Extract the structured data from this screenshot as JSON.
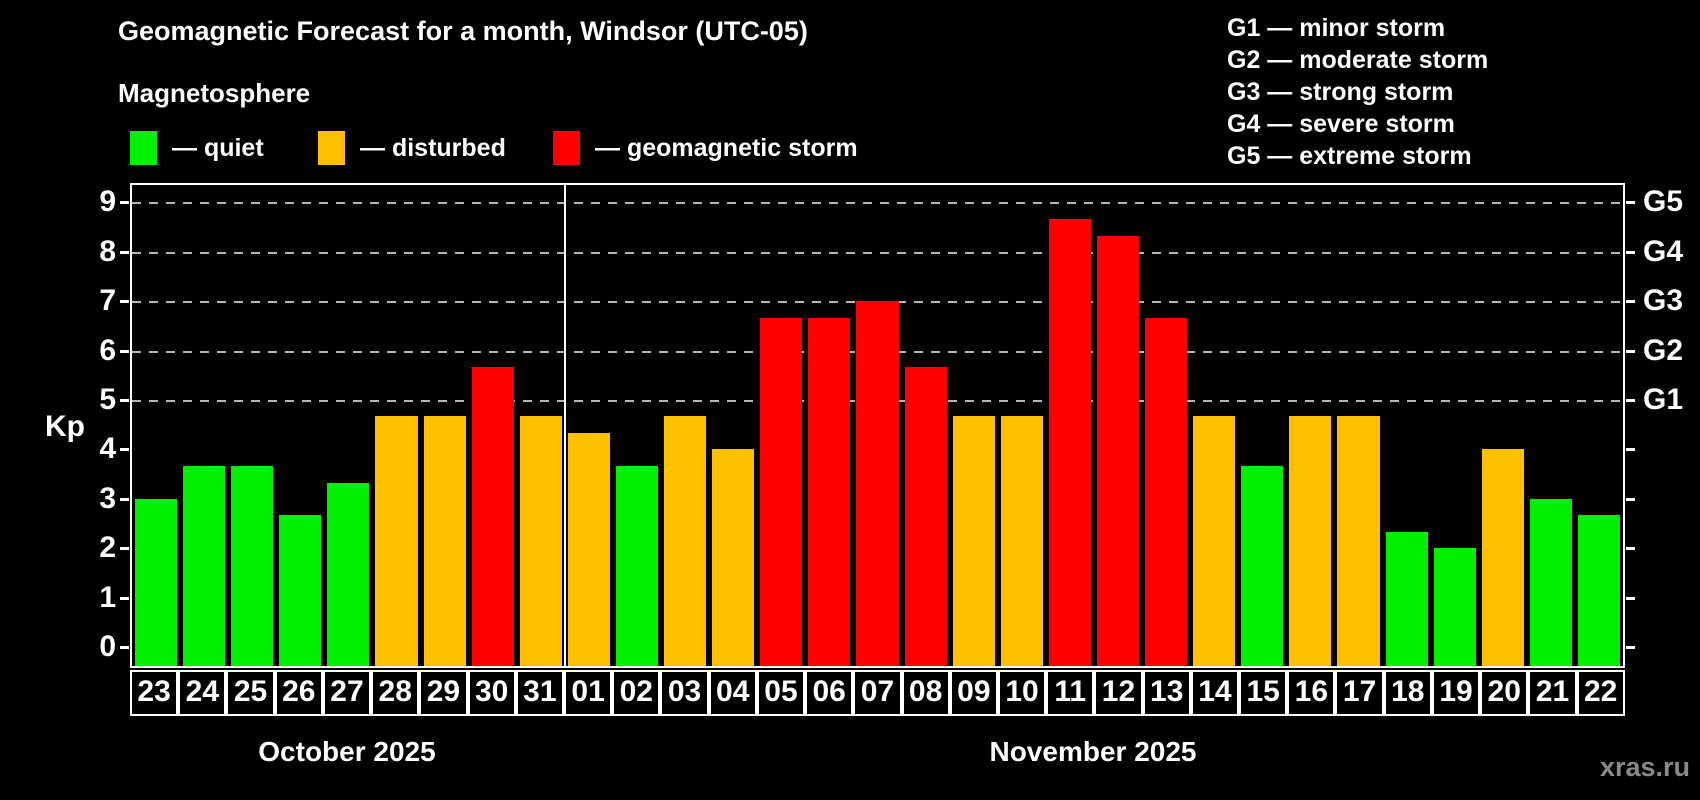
{
  "header": {
    "title": "Geomagnetic Forecast for a month, Windsor (UTC-05)",
    "subtitle": "Magnetosphere",
    "legend": [
      {
        "key": "quiet",
        "color": "#00f000",
        "label": "— quiet"
      },
      {
        "key": "disturbed",
        "color": "#ffc000",
        "label": "— disturbed"
      },
      {
        "key": "storm",
        "color": "#ff0000",
        "label": "— geomagnetic storm"
      }
    ]
  },
  "g_scale_legend": [
    "G1 — minor storm",
    "G2 — moderate storm",
    "G3 — strong storm",
    "G4 — severe storm",
    "G5 — extreme storm"
  ],
  "axes": {
    "y_label": "Kp",
    "y_ticks": [
      "0",
      "1",
      "2",
      "3",
      "4",
      "5",
      "6",
      "7",
      "8",
      "9"
    ],
    "right_labels": [
      {
        "kp": 5,
        "label": "G1"
      },
      {
        "kp": 6,
        "label": "G2"
      },
      {
        "kp": 7,
        "label": "G3"
      },
      {
        "kp": 8,
        "label": "G4"
      },
      {
        "kp": 9,
        "label": "G5"
      }
    ]
  },
  "months": [
    {
      "label": "October 2025",
      "days": 9
    },
    {
      "label": "November 2025",
      "days": 22
    }
  ],
  "watermark": "xras.ru",
  "chart_data": {
    "type": "bar",
    "title": "Geomagnetic Forecast for a month, Windsor (UTC-05)",
    "ylabel": "Kp",
    "ylim": [
      0,
      9.4
    ],
    "grid": "dashed horizontal lines at Kp 5-9 (G1-G5 levels)",
    "gridlines_at": [
      5,
      6,
      7,
      8,
      9
    ],
    "legend_position": "top-left",
    "categories": [
      "23",
      "24",
      "25",
      "26",
      "27",
      "28",
      "29",
      "30",
      "31",
      "01",
      "02",
      "03",
      "04",
      "05",
      "06",
      "07",
      "08",
      "09",
      "10",
      "11",
      "12",
      "13",
      "14",
      "15",
      "16",
      "17",
      "18",
      "19",
      "20",
      "21",
      "22"
    ],
    "values": [
      3.0,
      3.67,
      3.67,
      2.67,
      3.33,
      4.67,
      4.67,
      5.67,
      4.67,
      4.33,
      3.67,
      4.67,
      4.0,
      6.67,
      6.67,
      7.0,
      5.67,
      4.67,
      4.67,
      8.67,
      8.33,
      6.67,
      4.67,
      3.67,
      4.67,
      4.67,
      2.33,
      2.0,
      4.0,
      3.0,
      2.67
    ],
    "statuses": [
      "quiet",
      "quiet",
      "quiet",
      "quiet",
      "quiet",
      "disturbed",
      "disturbed",
      "storm",
      "disturbed",
      "disturbed",
      "quiet",
      "disturbed",
      "disturbed",
      "storm",
      "storm",
      "storm",
      "storm",
      "disturbed",
      "disturbed",
      "storm",
      "storm",
      "storm",
      "disturbed",
      "quiet",
      "disturbed",
      "disturbed",
      "quiet",
      "quiet",
      "disturbed",
      "quiet",
      "quiet"
    ],
    "status_colors": {
      "quiet": "#00f000",
      "disturbed": "#ffc000",
      "storm": "#ff0000"
    }
  }
}
